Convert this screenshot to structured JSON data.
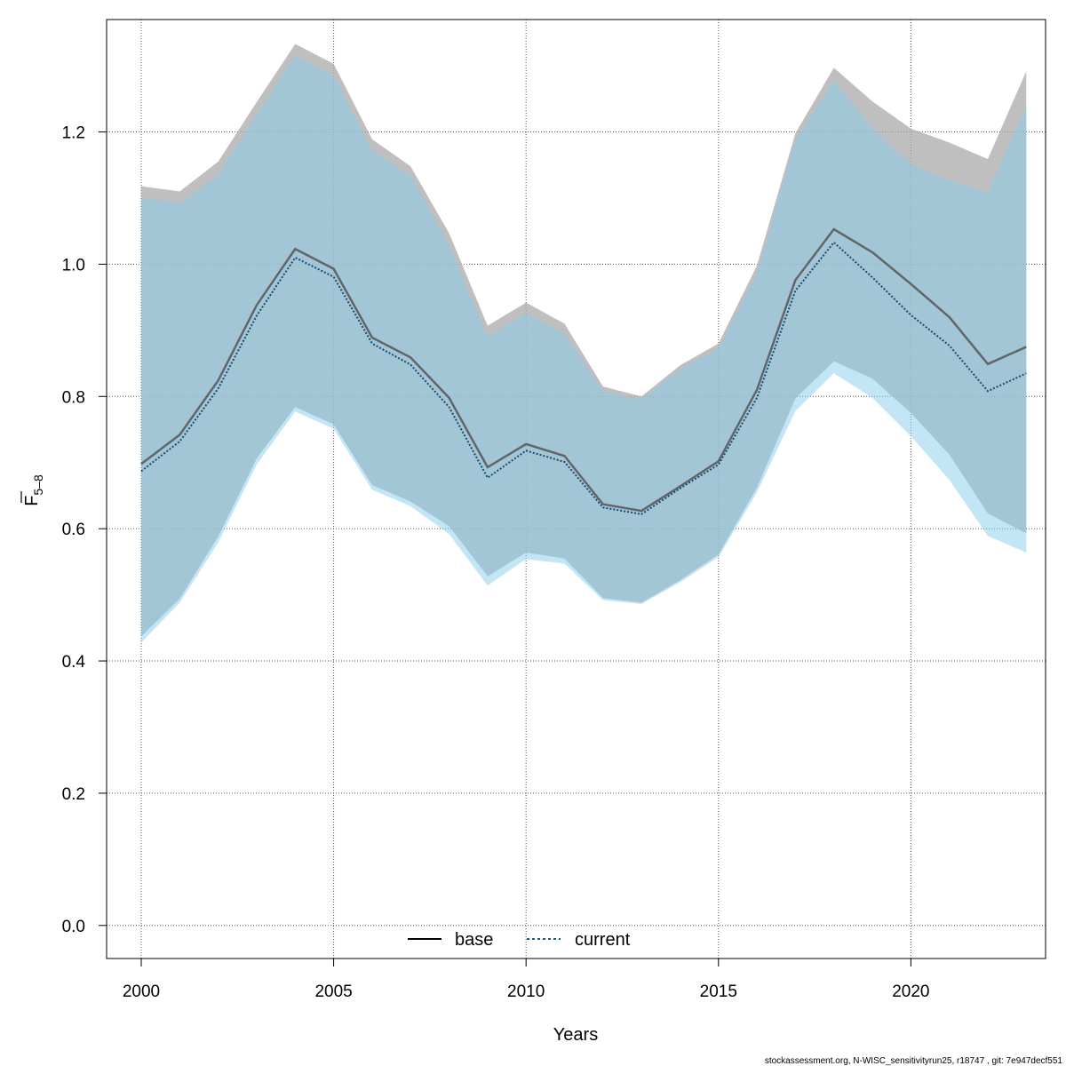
{
  "chart_data": {
    "type": "line",
    "xlabel": "Years",
    "ylabel": "F",
    "ylabel_subscript": "5–8",
    "xlim": [
      1999.1,
      2023.5
    ],
    "ylim": [
      -0.05,
      1.37
    ],
    "xticks": [
      2000,
      2005,
      2010,
      2015,
      2020
    ],
    "yticks": [
      0.0,
      0.2,
      0.4,
      0.6,
      0.8,
      1.0,
      1.2
    ],
    "ytick_labels": [
      "0.0",
      "0.2",
      "0.4",
      "0.6",
      "0.8",
      "1.0",
      "1.2"
    ],
    "grid": true,
    "legend_position": "bottom",
    "x": [
      2000,
      2001,
      2002,
      2003,
      2004,
      2005,
      2006,
      2007,
      2008,
      2009,
      2010,
      2011,
      2012,
      2013,
      2014,
      2015,
      2016,
      2017,
      2018,
      2019,
      2020,
      2021,
      2022,
      2023
    ],
    "series": [
      {
        "name": "base",
        "line_style": "solid",
        "line_color": "#555555",
        "band_color": "#a9a9a9",
        "values": [
          0.698,
          0.742,
          0.824,
          0.938,
          1.023,
          0.993,
          0.889,
          0.859,
          0.798,
          0.693,
          0.728,
          0.71,
          0.637,
          0.627,
          0.664,
          0.702,
          0.81,
          0.976,
          1.053,
          1.018,
          0.97,
          0.92,
          0.849,
          0.875
        ],
        "lower": [
          0.437,
          0.494,
          0.588,
          0.706,
          0.784,
          0.758,
          0.666,
          0.641,
          0.604,
          0.528,
          0.564,
          0.555,
          0.495,
          0.488,
          0.522,
          0.561,
          0.662,
          0.797,
          0.853,
          0.827,
          0.775,
          0.712,
          0.623,
          0.593
        ],
        "upper": [
          1.118,
          1.11,
          1.155,
          1.245,
          1.333,
          1.303,
          1.189,
          1.148,
          1.047,
          0.907,
          0.942,
          0.91,
          0.815,
          0.8,
          0.847,
          0.88,
          0.998,
          1.198,
          1.297,
          1.246,
          1.205,
          1.184,
          1.159,
          1.292
        ]
      },
      {
        "name": "current",
        "line_style": "dotted",
        "line_color": "#1a4a6b",
        "band_color": "#87cdf0",
        "values": [
          0.687,
          0.732,
          0.812,
          0.922,
          1.01,
          0.981,
          0.88,
          0.848,
          0.784,
          0.677,
          0.718,
          0.701,
          0.632,
          0.622,
          0.661,
          0.697,
          0.798,
          0.96,
          1.033,
          0.98,
          0.923,
          0.877,
          0.808,
          0.835
        ],
        "lower": [
          0.428,
          0.488,
          0.579,
          0.697,
          0.777,
          0.751,
          0.659,
          0.634,
          0.592,
          0.514,
          0.554,
          0.547,
          0.492,
          0.486,
          0.519,
          0.557,
          0.655,
          0.778,
          0.835,
          0.798,
          0.74,
          0.674,
          0.589,
          0.564
        ],
        "upper": [
          1.101,
          1.092,
          1.135,
          1.226,
          1.315,
          1.285,
          1.172,
          1.134,
          1.029,
          0.89,
          0.925,
          0.895,
          0.808,
          0.795,
          0.841,
          0.873,
          0.985,
          1.187,
          1.278,
          1.205,
          1.151,
          1.126,
          1.108,
          1.238
        ]
      }
    ]
  },
  "footer": {
    "credit": "stockassessment.org, N-WISC_sensitivityrun25, r18747 , git: 7e947decf551"
  },
  "colors": {
    "axis": "#000000",
    "grid": "#555555",
    "band_overlap": "#a3c5d6"
  }
}
